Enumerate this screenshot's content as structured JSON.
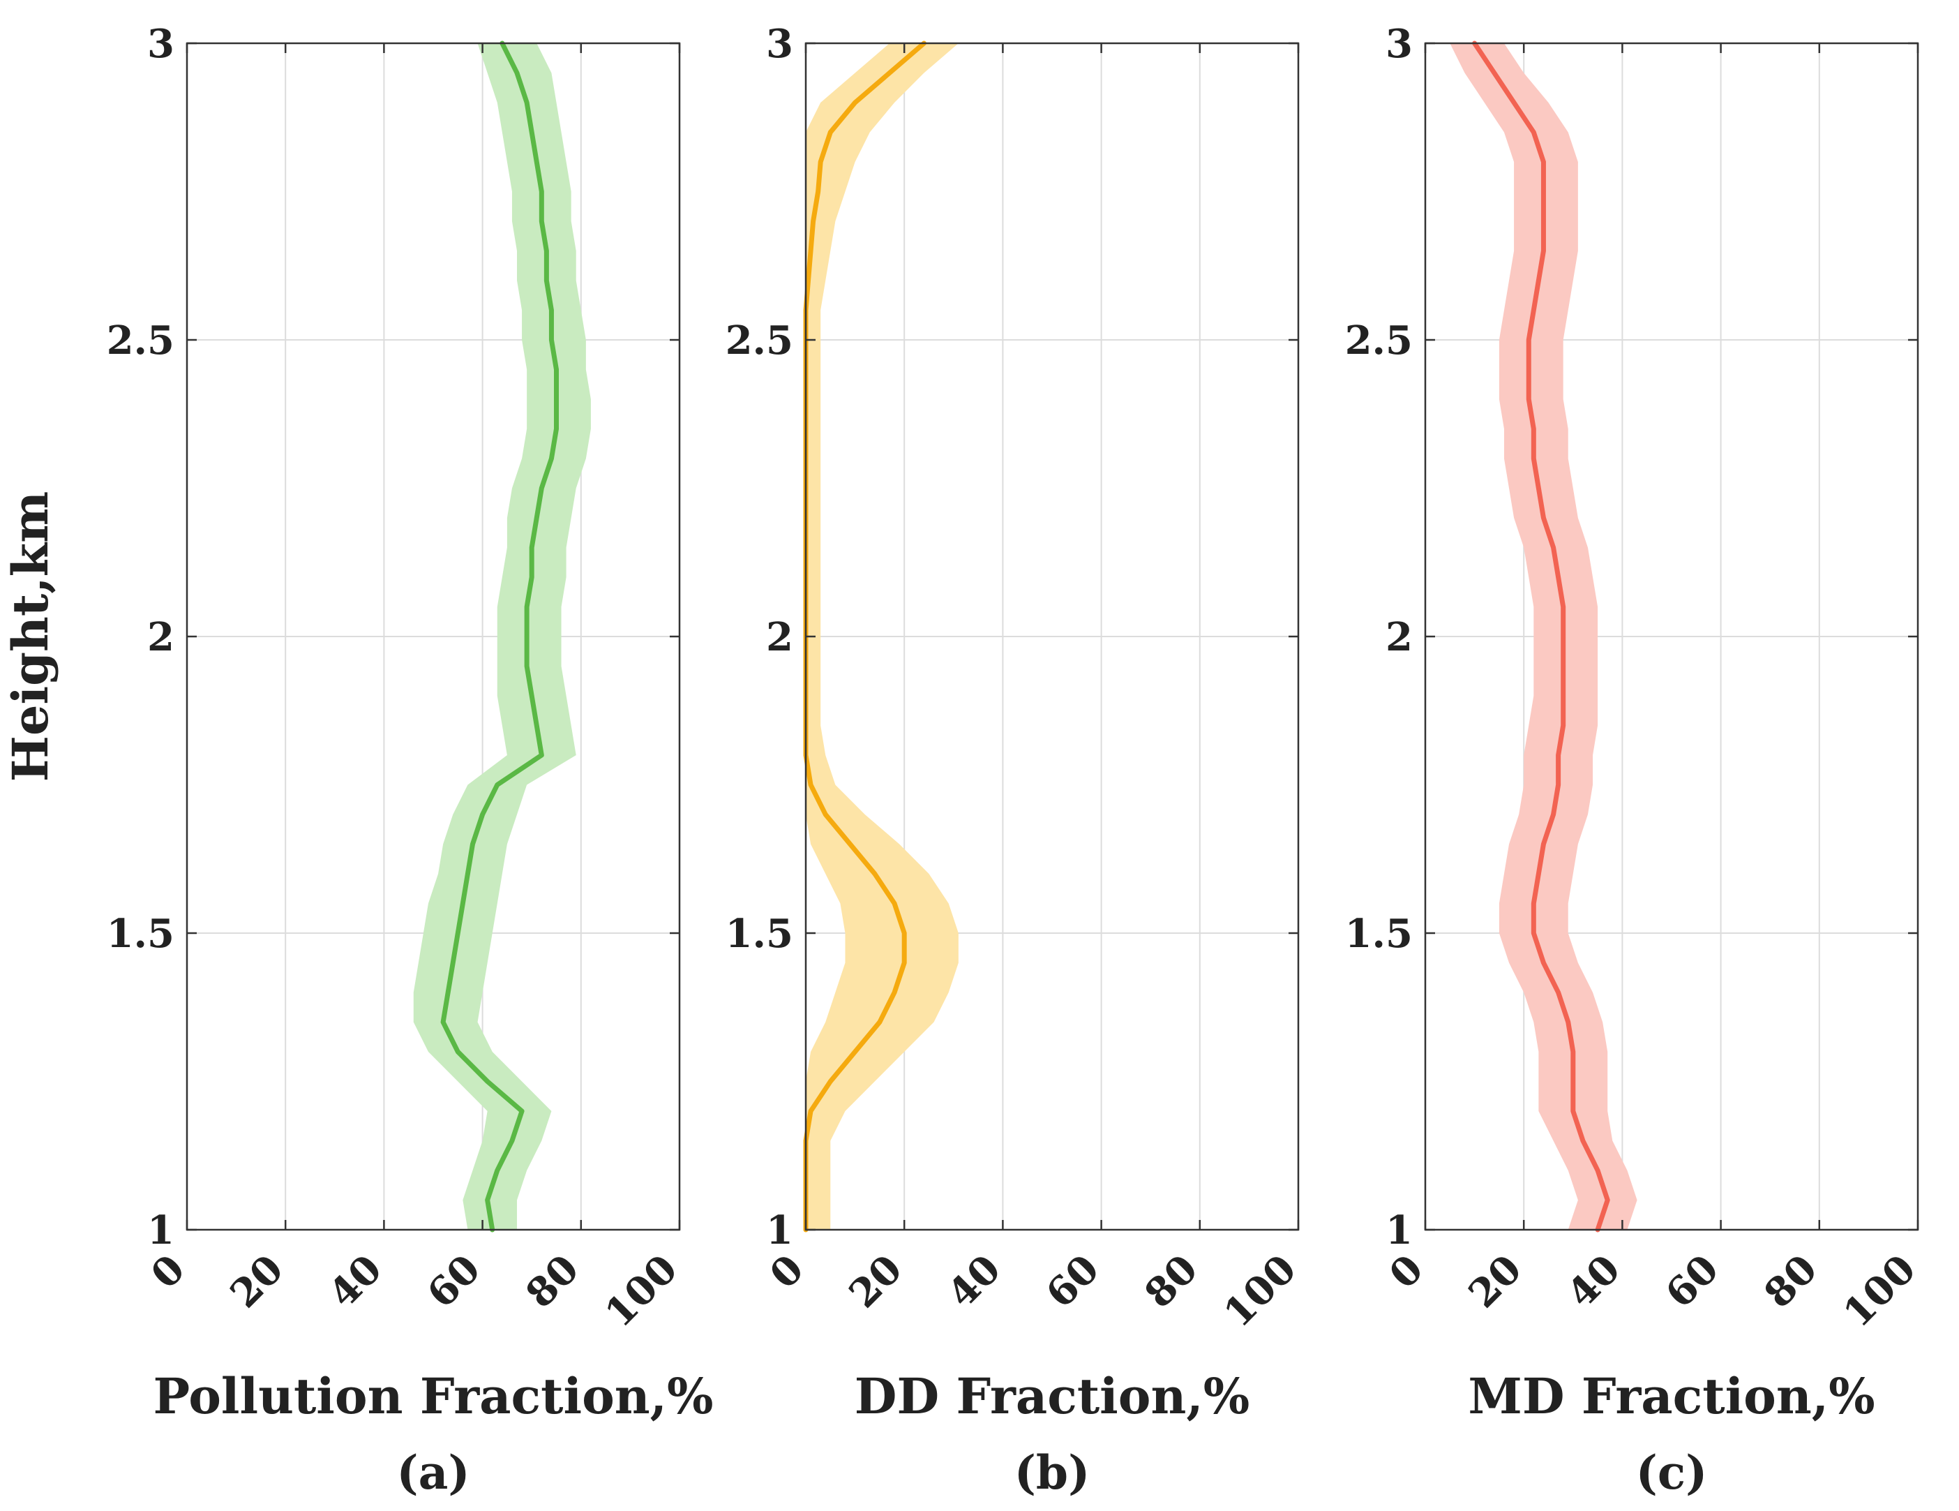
{
  "figure": {
    "ylabel": "Height,km",
    "yticks": [
      1,
      1.5,
      2,
      2.5,
      3
    ],
    "yticklabels": [
      "1",
      "1.5",
      "2",
      "2.5",
      "3"
    ],
    "xticks": [
      0,
      20,
      40,
      60,
      80,
      100
    ],
    "xticklabels": [
      "0",
      "20",
      "40",
      "60",
      "80",
      "100"
    ]
  },
  "chart_data": [
    {
      "type": "line",
      "panel": "(a)",
      "xlabel": "Pollution Fraction,%",
      "ylabel": "Height,km",
      "xlim": [
        0,
        100
      ],
      "ylim": [
        1,
        3
      ],
      "grid": true,
      "color": "#5ab845",
      "band_color": "#c9ebc0",
      "series": [
        {
          "name": "Pollution",
          "y": [
            1.0,
            1.05,
            1.1,
            1.15,
            1.2,
            1.25,
            1.3,
            1.35,
            1.4,
            1.45,
            1.5,
            1.55,
            1.6,
            1.65,
            1.7,
            1.75,
            1.8,
            1.85,
            1.9,
            1.95,
            2.0,
            2.05,
            2.1,
            2.15,
            2.2,
            2.25,
            2.3,
            2.35,
            2.4,
            2.45,
            2.5,
            2.55,
            2.6,
            2.65,
            2.7,
            2.75,
            2.8,
            2.85,
            2.9,
            2.95,
            3.0
          ],
          "mean": [
            62,
            61,
            63,
            66,
            68,
            61,
            55,
            52,
            53,
            54,
            55,
            56,
            57,
            58,
            60,
            63,
            72,
            71,
            70,
            69,
            69,
            69,
            70,
            70,
            71,
            72,
            74,
            75,
            75,
            75,
            74,
            74,
            73,
            73,
            72,
            72,
            71,
            70,
            69,
            67,
            64
          ],
          "lower": [
            57,
            56,
            58,
            60,
            61,
            55,
            49,
            46,
            46,
            47,
            48,
            49,
            51,
            52,
            54,
            57,
            65,
            64,
            63,
            63,
            63,
            63,
            64,
            65,
            65,
            66,
            68,
            69,
            69,
            69,
            68,
            68,
            67,
            67,
            66,
            66,
            65,
            64,
            63,
            61,
            59
          ],
          "upper": [
            67,
            67,
            69,
            72,
            74,
            68,
            62,
            59,
            60,
            61,
            62,
            63,
            64,
            65,
            67,
            69,
            79,
            78,
            77,
            76,
            76,
            76,
            77,
            77,
            78,
            79,
            81,
            82,
            82,
            81,
            81,
            80,
            79,
            79,
            78,
            78,
            77,
            76,
            75,
            74,
            71
          ]
        }
      ]
    },
    {
      "type": "line",
      "panel": "(b)",
      "xlabel": "DD Fraction,%",
      "ylabel": "Height,km",
      "xlim": [
        0,
        100
      ],
      "ylim": [
        1,
        3
      ],
      "grid": true,
      "color": "#f5aa0f",
      "band_color": "#fde4a7",
      "series": [
        {
          "name": "DD",
          "y": [
            1.0,
            1.05,
            1.1,
            1.15,
            1.2,
            1.25,
            1.3,
            1.35,
            1.4,
            1.45,
            1.5,
            1.55,
            1.6,
            1.65,
            1.7,
            1.75,
            1.8,
            1.85,
            1.9,
            1.95,
            2.0,
            2.05,
            2.1,
            2.15,
            2.2,
            2.25,
            2.3,
            2.35,
            2.4,
            2.45,
            2.5,
            2.55,
            2.6,
            2.65,
            2.7,
            2.75,
            2.8,
            2.85,
            2.9,
            2.95,
            3.0
          ],
          "mean": [
            0,
            0,
            0,
            0,
            1,
            5,
            10,
            15,
            18,
            20,
            20,
            18,
            14,
            9,
            4,
            1,
            0,
            0,
            0,
            0,
            0,
            0,
            0,
            0,
            0,
            0,
            0,
            0,
            0,
            0,
            0,
            0,
            0.5,
            1,
            1.5,
            2.5,
            3,
            5,
            10,
            17,
            24
          ],
          "lower": [
            0,
            0,
            0,
            0,
            0,
            0,
            1,
            4,
            6,
            8,
            8,
            7,
            4,
            1,
            0,
            0,
            0,
            0,
            0,
            0,
            0,
            0,
            0,
            0,
            0,
            0,
            0,
            0,
            0,
            0,
            0,
            0,
            0,
            0,
            0,
            0,
            0,
            0,
            3,
            10,
            17
          ],
          "upper": [
            5,
            5,
            5,
            5,
            8,
            14,
            20,
            26,
            29,
            31,
            31,
            29,
            25,
            19,
            12,
            6,
            4,
            3,
            3,
            3,
            3,
            3,
            3,
            3,
            3,
            3,
            3,
            3,
            3,
            3,
            3,
            3,
            4,
            5,
            6,
            8,
            10,
            13,
            18,
            24,
            31
          ]
        }
      ]
    },
    {
      "type": "line",
      "panel": "(c)",
      "xlabel": "MD Fraction,%",
      "ylabel": "Height,km",
      "xlim": [
        0,
        100
      ],
      "ylim": [
        1,
        3
      ],
      "grid": true,
      "color": "#f26352",
      "band_color": "#fbc9c2",
      "series": [
        {
          "name": "MD",
          "y": [
            1.0,
            1.05,
            1.1,
            1.15,
            1.2,
            1.25,
            1.3,
            1.35,
            1.4,
            1.45,
            1.5,
            1.55,
            1.6,
            1.65,
            1.7,
            1.75,
            1.8,
            1.85,
            1.9,
            1.95,
            2.0,
            2.05,
            2.1,
            2.15,
            2.2,
            2.25,
            2.3,
            2.35,
            2.4,
            2.45,
            2.5,
            2.55,
            2.6,
            2.65,
            2.7,
            2.75,
            2.8,
            2.85,
            2.9,
            2.95,
            3.0
          ],
          "mean": [
            35,
            37,
            35,
            32,
            30,
            30,
            30,
            29,
            27,
            24,
            22,
            22,
            23,
            24,
            26,
            27,
            27,
            28,
            28,
            28,
            28,
            28,
            27,
            26,
            24,
            23,
            22,
            22,
            21,
            21,
            21,
            22,
            23,
            24,
            24,
            24,
            24,
            22,
            18,
            14,
            10
          ],
          "lower": [
            29,
            31,
            29,
            26,
            23,
            23,
            23,
            22,
            20,
            17,
            15,
            15,
            16,
            17,
            19,
            20,
            20,
            21,
            22,
            22,
            22,
            22,
            21,
            20,
            18,
            17,
            16,
            16,
            15,
            15,
            15,
            16,
            17,
            18,
            18,
            18,
            18,
            16,
            12,
            8,
            5
          ],
          "upper": [
            41,
            43,
            41,
            38,
            37,
            37,
            37,
            36,
            34,
            31,
            29,
            29,
            30,
            31,
            33,
            34,
            34,
            35,
            35,
            35,
            35,
            35,
            34,
            33,
            31,
            30,
            29,
            29,
            28,
            28,
            28,
            29,
            30,
            31,
            31,
            31,
            31,
            29,
            25,
            20,
            16
          ]
        }
      ]
    }
  ]
}
